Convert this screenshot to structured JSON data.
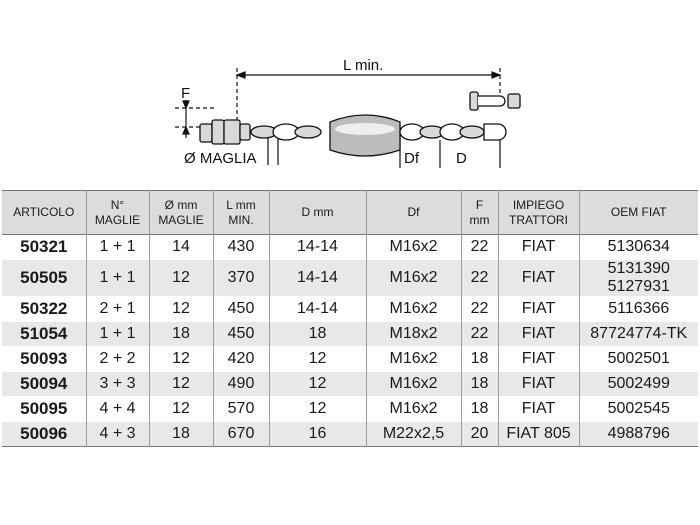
{
  "diagram": {
    "labels": {
      "l_min": "L min.",
      "f": "F",
      "maglia": "Ø MAGLIA",
      "df": "Df",
      "d": "D"
    }
  },
  "table": {
    "header": [
      [
        "ARTICOLO"
      ],
      [
        "N°",
        "MAGLIE"
      ],
      [
        "Ø mm",
        "MAGLIE"
      ],
      [
        "L mm",
        "MIN."
      ],
      [
        "D mm"
      ],
      [
        "Df"
      ],
      [
        "F",
        "mm"
      ],
      [
        "IMPIEGO",
        "TRATTORI"
      ],
      [
        "OEM FIAT"
      ]
    ],
    "rows": [
      [
        "50321",
        "1 + 1",
        "14",
        "430",
        "14-14",
        "M16x2",
        "22",
        "FIAT",
        [
          "5130634"
        ]
      ],
      [
        "50505",
        "1 + 1",
        "12",
        "370",
        "14-14",
        "M16x2",
        "22",
        "FIAT",
        [
          "5131390",
          "5127931"
        ]
      ],
      [
        "50322",
        "2 + 1",
        "12",
        "450",
        "14-14",
        "M16x2",
        "22",
        "FIAT",
        [
          "5116366"
        ]
      ],
      [
        "51054",
        "1 + 1",
        "18",
        "450",
        "18",
        "M18x2",
        "22",
        "FIAT",
        [
          "87724774-TK"
        ]
      ],
      [
        "50093",
        "2 + 2",
        "12",
        "420",
        "12",
        "M16x2",
        "18",
        "FIAT",
        [
          "5002501"
        ]
      ],
      [
        "50094",
        "3 + 3",
        "12",
        "490",
        "12",
        "M16x2",
        "18",
        "FIAT",
        [
          "5002499"
        ]
      ],
      [
        "50095",
        "4 + 4",
        "12",
        "570",
        "12",
        "M16x2",
        "18",
        "FIAT",
        [
          "5002545"
        ]
      ],
      [
        "50096",
        "4 + 3",
        "18",
        "670",
        "16",
        "M22x2,5",
        "20",
        "FIAT 805",
        [
          "4988796"
        ]
      ]
    ]
  }
}
